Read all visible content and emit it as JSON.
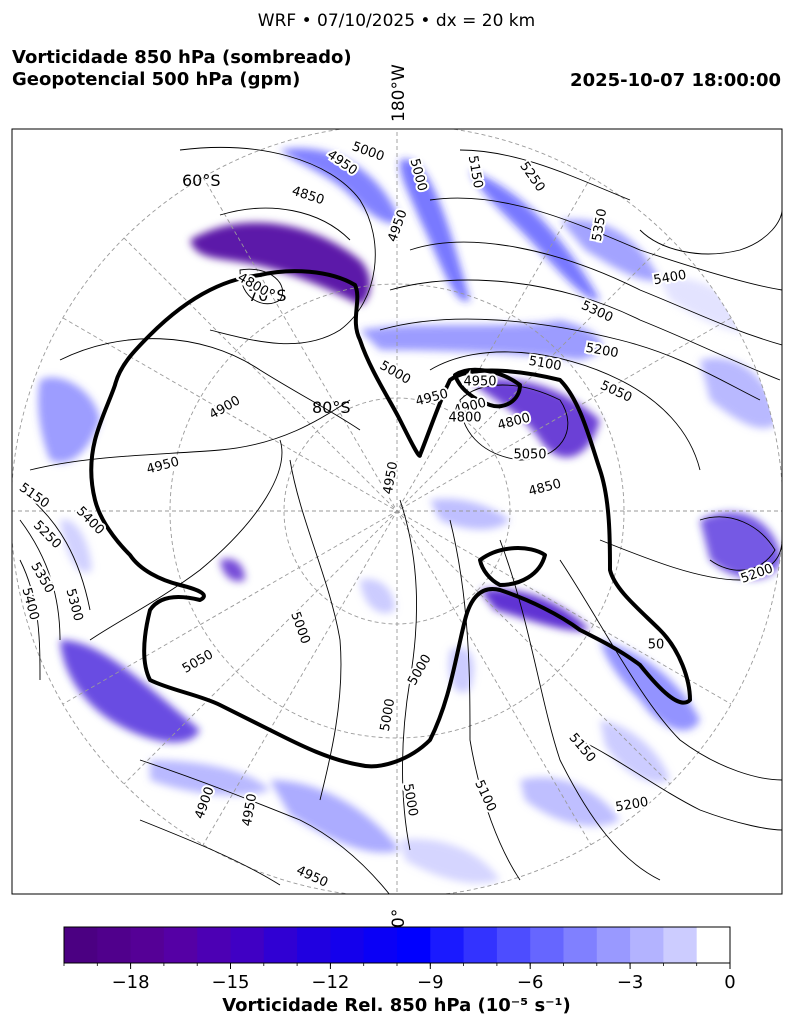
{
  "header": {
    "suptitle": "WRF • 07/10/2025 • dx = 20 km",
    "title_line1": "Vorticidade 850 hPa (sombreado)",
    "title_line2": "Geopotencial 500 hPa (gpm)",
    "valid_time": "2025-10-07 18:00:00"
  },
  "map": {
    "projection": "south polar stereographic",
    "meridian_top": "180°W",
    "meridian_bottom": "0°",
    "lat_labels": [
      "60°S",
      "70°S",
      "80°S"
    ],
    "grid": true,
    "coastline_color": "#000000"
  },
  "chart_data": {
    "type": "heatmap",
    "fields": [
      {
        "field": "Vorticidade Rel. 850 hPa",
        "units": "10⁻⁵ s⁻¹",
        "style": "filled",
        "cmap": "white-blue-purple"
      },
      {
        "field": "Geopotencial 500 hPa",
        "units": "gpm",
        "style": "contour",
        "color": "#000000"
      }
    ],
    "contour_labels": [
      {
        "text": "5000"
      },
      {
        "text": "4950"
      },
      {
        "text": "4850"
      },
      {
        "text": "4950"
      },
      {
        "text": "5000"
      },
      {
        "text": "5150"
      },
      {
        "text": "5250"
      },
      {
        "text": "5350"
      },
      {
        "text": "5400"
      },
      {
        "text": "5300"
      },
      {
        "text": "5200"
      },
      {
        "text": "5100"
      },
      {
        "text": "5050"
      },
      {
        "text": "4800"
      },
      {
        "text": "4850"
      },
      {
        "text": "4900"
      },
      {
        "text": "4950"
      },
      {
        "text": "5000"
      },
      {
        "text": "4950"
      },
      {
        "text": "4900"
      },
      {
        "text": "4950"
      },
      {
        "text": "5150"
      },
      {
        "text": "5250"
      },
      {
        "text": "5400"
      },
      {
        "text": "5350"
      },
      {
        "text": "5300"
      },
      {
        "text": "5400"
      },
      {
        "text": "5000"
      },
      {
        "text": "5050"
      },
      {
        "text": "5000"
      },
      {
        "text": "5000"
      },
      {
        "text": "5000"
      },
      {
        "text": "5100"
      },
      {
        "text": "5150"
      },
      {
        "text": "5200"
      },
      {
        "text": "4950"
      },
      {
        "text": "4900"
      },
      {
        "text": "4950"
      },
      {
        "text": "5200"
      },
      {
        "text": "4950"
      },
      {
        "text": "4800"
      },
      {
        "text": "4800"
      },
      {
        "text": "5050"
      },
      {
        "text": "50"
      }
    ],
    "colorbar": {
      "label": "Vorticidade Rel. 850 hPa (10⁻⁵ s⁻¹)",
      "range": [
        -20,
        0
      ],
      "bins": [
        -20,
        -19,
        -18,
        -17,
        -16,
        -15,
        -14,
        -13,
        -12,
        -11,
        -10,
        -9,
        -8,
        -7,
        -6,
        -5,
        -4,
        -3,
        -2,
        -1,
        0
      ],
      "ticks": [
        -18,
        -15,
        -12,
        -9,
        -6,
        -3,
        0
      ],
      "tick_labels": [
        "−18",
        "−15",
        "−12",
        "−9",
        "−6",
        "−3",
        "0"
      ],
      "colors": [
        "#4b0082",
        "#50008c",
        "#550096",
        "#5500a5",
        "#4c00b4",
        "#4000c4",
        "#3000d3",
        "#2000e0",
        "#1400ec",
        "#0a00f6",
        "#0000ff",
        "#1a1aff",
        "#3333ff",
        "#4d4dff",
        "#6666ff",
        "#8080ff",
        "#9999ff",
        "#b3b3ff",
        "#ccccff",
        "#ffffff"
      ]
    }
  }
}
